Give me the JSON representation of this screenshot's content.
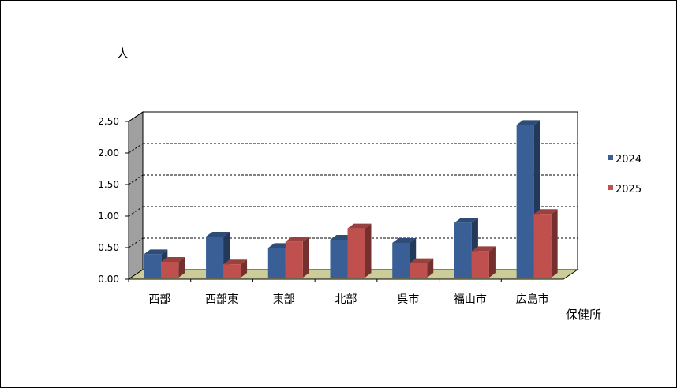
{
  "chart_data": {
    "type": "bar",
    "ylabel": "人",
    "xlabel": "保健所",
    "categories": [
      "西部",
      "西部東",
      "東部",
      "北部",
      "呉市",
      "福山市",
      "広島市"
    ],
    "series": [
      {
        "name": "2024",
        "values": [
          0.37,
          0.65,
          0.47,
          0.6,
          0.55,
          0.87,
          2.42
        ],
        "color": "#3a5f96"
      },
      {
        "name": "2025",
        "values": [
          0.25,
          0.21,
          0.57,
          0.78,
          0.23,
          0.42,
          1.01
        ],
        "color": "#c0504d"
      }
    ],
    "yticks": [
      "0.00",
      "0.50",
      "1.00",
      "1.50",
      "2.00",
      "2.50"
    ],
    "ylim": [
      0,
      2.5
    ],
    "grid": true,
    "legend": "right",
    "floor_color": "#cccc99",
    "wall_color": "#a0a0a0"
  }
}
